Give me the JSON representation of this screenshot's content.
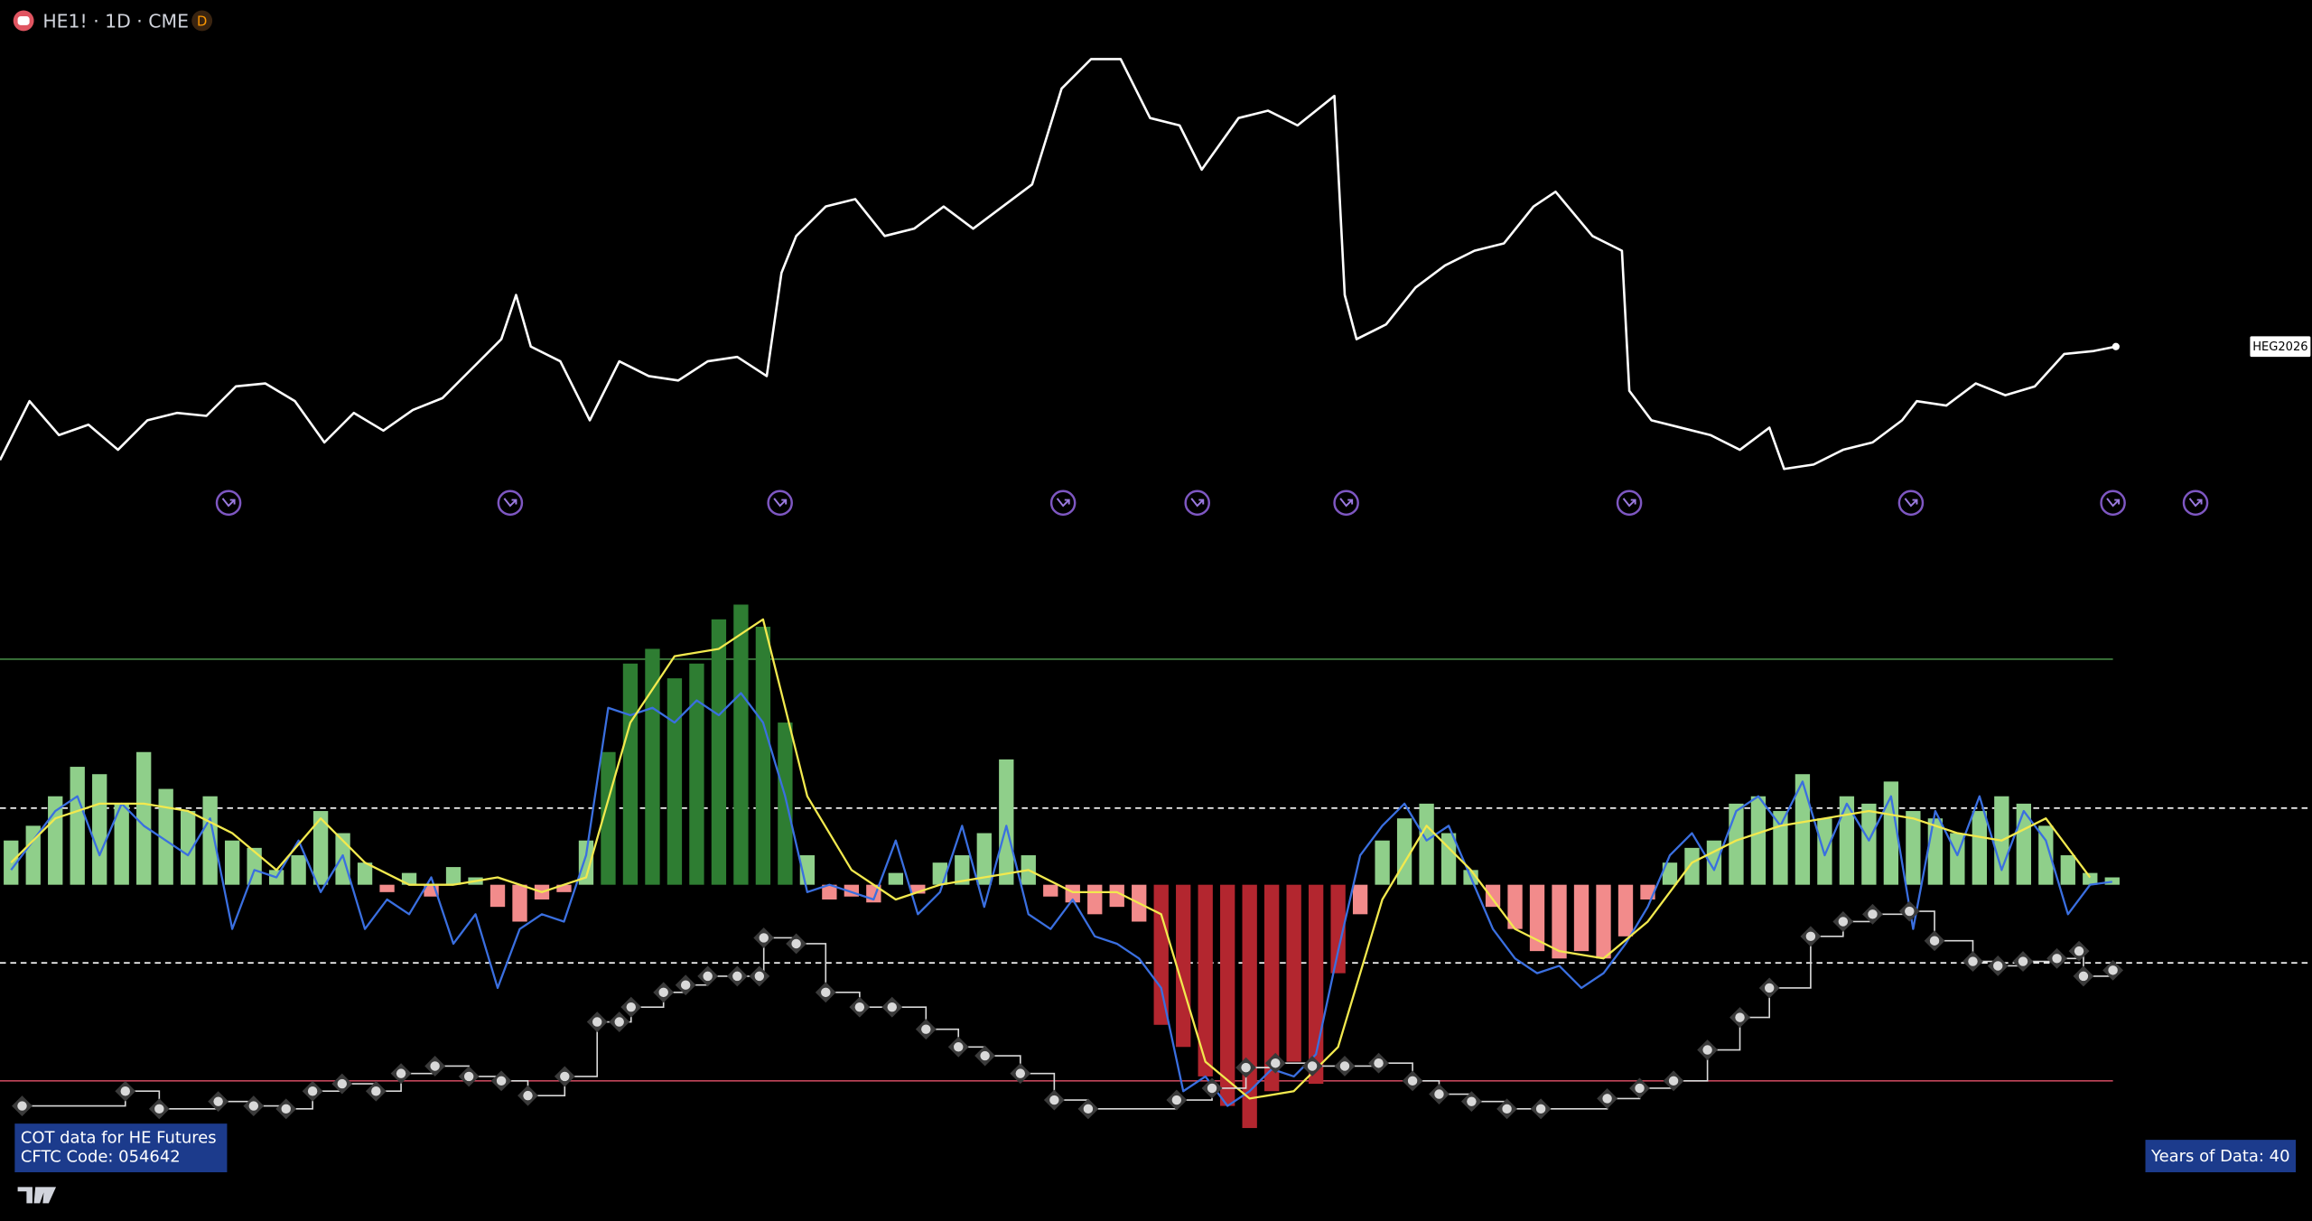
{
  "header": {
    "symbol": "HE1! · 1D · CME",
    "badge": "D"
  },
  "info_box": {
    "line1": "COT data for HE Futures",
    "line2": "CFTC Code: 054642"
  },
  "years_box": "Years of Data: 40",
  "chart_data": [
    {
      "type": "line",
      "color": "#ffffff",
      "end_label": "HEG2026",
      "xlim": [
        0,
        1568
      ],
      "ylim": [
        0,
        300
      ],
      "x": [
        0,
        20,
        40,
        60,
        80,
        100,
        120,
        140,
        160,
        180,
        200,
        220,
        240,
        260,
        280,
        300,
        320,
        340,
        350,
        360,
        380,
        400,
        420,
        440,
        460,
        480,
        500,
        520,
        530,
        540,
        560,
        580,
        600,
        620,
        640,
        660,
        680,
        700,
        720,
        740,
        760,
        780,
        800,
        815,
        840,
        860,
        880,
        905,
        912,
        920,
        940,
        960,
        980,
        1000,
        1020,
        1040,
        1055,
        1080,
        1100,
        1105,
        1120,
        1140,
        1160,
        1180,
        1200,
        1210,
        1230,
        1250,
        1270,
        1290,
        1300,
        1320,
        1340,
        1360,
        1380,
        1400,
        1420,
        1435
      ],
      "values": [
        18,
        58,
        35,
        42,
        25,
        45,
        50,
        48,
        68,
        70,
        58,
        30,
        50,
        38,
        52,
        60,
        80,
        100,
        130,
        95,
        85,
        45,
        85,
        75,
        72,
        85,
        88,
        75,
        145,
        170,
        190,
        195,
        170,
        175,
        190,
        175,
        190,
        205,
        270,
        290,
        290,
        250,
        245,
        215,
        250,
        255,
        245,
        265,
        130,
        100,
        110,
        135,
        150,
        160,
        165,
        190,
        200,
        170,
        160,
        65,
        45,
        40,
        35,
        25,
        40,
        12,
        15,
        25,
        30,
        45,
        58,
        55,
        70,
        62,
        68,
        90,
        92,
        95
      ]
    },
    {
      "type": "bar",
      "xlim": [
        0,
        1568
      ],
      "ylim": [
        -180,
        220
      ],
      "hlines": [
        {
          "value": 153,
          "color": "#3f7d3f",
          "dashed": false
        },
        {
          "value": 52,
          "color": "#ffffff",
          "dashed": true
        },
        {
          "value": -53,
          "color": "#ffffff",
          "dashed": true
        },
        {
          "value": -133,
          "color": "#c2455a",
          "dashed": false
        }
      ],
      "x": [
        7.5,
        22.5,
        37.5,
        52.5,
        67.5,
        82.5,
        97.5,
        112.5,
        127.5,
        142.5,
        157.5,
        172.5,
        187.5,
        202.5,
        217.5,
        232.5,
        247.5,
        262.5,
        277.5,
        292.5,
        307.5,
        322.5,
        337.5,
        352.5,
        367.5,
        382.5,
        397.5,
        412.5,
        427.5,
        442.5,
        457.5,
        472.5,
        487.5,
        502.5,
        517.5,
        532.5,
        547.5,
        562.5,
        577.5,
        592.5,
        607.5,
        622.5,
        637.5,
        652.5,
        667.5,
        682.5,
        697.5,
        712.5,
        727.5,
        742.5,
        757.5,
        772.5,
        787.5,
        802.5,
        817.5,
        832.5,
        847.5,
        862.5,
        877.5,
        892.5,
        907.5,
        922.5,
        937.5,
        952.5,
        967.5,
        982.5,
        997.5,
        1012.5,
        1027.5,
        1042.5,
        1057.5,
        1072.5,
        1087.5,
        1102.5,
        1117.5,
        1132.5,
        1147.5,
        1162.5,
        1177.5,
        1192.5,
        1207.5,
        1222.5,
        1237.5,
        1252.5,
        1267.5,
        1282.5,
        1297.5,
        1312.5,
        1327.5,
        1342.5,
        1357.5,
        1372.5,
        1387.5,
        1402.5,
        1417.5,
        1432.5
      ],
      "values": [
        30,
        40,
        60,
        80,
        75,
        55,
        90,
        65,
        50,
        60,
        30,
        25,
        10,
        20,
        50,
        35,
        15,
        -5,
        8,
        -8,
        12,
        5,
        -15,
        -25,
        -10,
        -5,
        30,
        90,
        150,
        160,
        140,
        150,
        180,
        190,
        175,
        110,
        20,
        -10,
        -8,
        -12,
        8,
        -6,
        15,
        20,
        35,
        85,
        20,
        -8,
        -12,
        -20,
        -15,
        -25,
        -95,
        -110,
        -130,
        -150,
        -165,
        -140,
        -120,
        -135,
        -60,
        -20,
        30,
        45,
        55,
        35,
        10,
        -15,
        -30,
        -45,
        -50,
        -45,
        -50,
        -35,
        -10,
        15,
        25,
        30,
        55,
        60,
        50,
        75,
        45,
        60,
        55,
        70,
        50,
        45,
        35,
        50,
        60,
        55,
        40,
        20,
        8,
        5
      ],
      "colors": [
        "#8fcf8a",
        "#8fcf8a",
        "#8fcf8a",
        "#8fcf8a",
        "#8fcf8a",
        "#8fcf8a",
        "#8fcf8a",
        "#8fcf8a",
        "#8fcf8a",
        "#8fcf8a",
        "#8fcf8a",
        "#8fcf8a",
        "#8fcf8a",
        "#8fcf8a",
        "#8fcf8a",
        "#8fcf8a",
        "#8fcf8a",
        "#f28b8b",
        "#8fcf8a",
        "#f28b8b",
        "#8fcf8a",
        "#8fcf8a",
        "#f28b8b",
        "#f28b8b",
        "#f28b8b",
        "#f28b8b",
        "#8fcf8a",
        "#2e7d32",
        "#2e7d32",
        "#2e7d32",
        "#2e7d32",
        "#2e7d32",
        "#2e7d32",
        "#2e7d32",
        "#2e7d32",
        "#2e7d32",
        "#8fcf8a",
        "#f28b8b",
        "#f28b8b",
        "#f28b8b",
        "#8fcf8a",
        "#f28b8b",
        "#8fcf8a",
        "#8fcf8a",
        "#8fcf8a",
        "#8fcf8a",
        "#8fcf8a",
        "#f28b8b",
        "#f28b8b",
        "#f28b8b",
        "#f28b8b",
        "#f28b8b",
        "#b3262f",
        "#b3262f",
        "#b3262f",
        "#b3262f",
        "#b3262f",
        "#b3262f",
        "#b3262f",
        "#b3262f",
        "#b3262f",
        "#f28b8b",
        "#8fcf8a",
        "#8fcf8a",
        "#8fcf8a",
        "#8fcf8a",
        "#8fcf8a",
        "#f28b8b",
        "#f28b8b",
        "#f28b8b",
        "#f28b8b",
        "#f28b8b",
        "#f28b8b",
        "#f28b8b",
        "#f28b8b",
        "#8fcf8a",
        "#8fcf8a",
        "#8fcf8a",
        "#8fcf8a",
        "#8fcf8a",
        "#8fcf8a",
        "#8fcf8a",
        "#8fcf8a",
        "#8fcf8a",
        "#8fcf8a",
        "#8fcf8a",
        "#8fcf8a",
        "#8fcf8a",
        "#8fcf8a",
        "#8fcf8a",
        "#8fcf8a",
        "#8fcf8a",
        "#8fcf8a",
        "#8fcf8a",
        "#8fcf8a",
        "#8fcf8a"
      ]
    },
    {
      "type": "line",
      "color": "#3a6fe0",
      "xlim": [
        0,
        1568
      ],
      "ylim": [
        -180,
        220
      ],
      "x": [
        7.5,
        22.5,
        37.5,
        52.5,
        67.5,
        82.5,
        97.5,
        112.5,
        127.5,
        142.5,
        157.5,
        172.5,
        187.5,
        202.5,
        217.5,
        232.5,
        247.5,
        262.5,
        277.5,
        292.5,
        307.5,
        322.5,
        337.5,
        352.5,
        367.5,
        382.5,
        397.5,
        412.5,
        427.5,
        442.5,
        457.5,
        472.5,
        487.5,
        502.5,
        517.5,
        532.5,
        547.5,
        562.5,
        577.5,
        592.5,
        607.5,
        622.5,
        637.5,
        652.5,
        667.5,
        682.5,
        697.5,
        712.5,
        727.5,
        742.5,
        757.5,
        772.5,
        787.5,
        802.5,
        817.5,
        832.5,
        847.5,
        862.5,
        877.5,
        892.5,
        907.5,
        922.5,
        937.5,
        952.5,
        967.5,
        982.5,
        997.5,
        1012.5,
        1027.5,
        1042.5,
        1057.5,
        1072.5,
        1087.5,
        1102.5,
        1117.5,
        1132.5,
        1147.5,
        1162.5,
        1177.5,
        1192.5,
        1207.5,
        1222.5,
        1237.5,
        1252.5,
        1267.5,
        1282.5,
        1297.5,
        1312.5,
        1327.5,
        1342.5,
        1357.5,
        1372.5,
        1387.5,
        1402.5,
        1417.5,
        1432.5
      ],
      "values": [
        10,
        30,
        50,
        60,
        20,
        55,
        40,
        30,
        20,
        45,
        -30,
        10,
        5,
        30,
        -5,
        20,
        -30,
        -10,
        -20,
        5,
        -40,
        -20,
        -70,
        -30,
        -20,
        -25,
        20,
        120,
        115,
        120,
        110,
        125,
        115,
        130,
        110,
        60,
        -5,
        0,
        -5,
        -10,
        30,
        -20,
        -5,
        40,
        -15,
        40,
        -20,
        -30,
        -10,
        -35,
        -40,
        -50,
        -70,
        -140,
        -130,
        -150,
        -140,
        -125,
        -130,
        -115,
        -45,
        20,
        40,
        55,
        30,
        40,
        5,
        -30,
        -50,
        -60,
        -55,
        -70,
        -60,
        -40,
        -15,
        20,
        35,
        10,
        50,
        60,
        40,
        70,
        20,
        55,
        30,
        60,
        -30,
        50,
        20,
        60,
        10,
        50,
        30,
        -20,
        0,
        2
      ]
    },
    {
      "type": "line",
      "color": "#f2e94e",
      "xlim": [
        0,
        1568
      ],
      "ylim": [
        -180,
        220
      ],
      "x": [
        7.5,
        37.5,
        67.5,
        97.5,
        127.5,
        157.5,
        187.5,
        217.5,
        247.5,
        277.5,
        307.5,
        337.5,
        367.5,
        397.5,
        427.5,
        457.5,
        487.5,
        517.5,
        547.5,
        577.5,
        607.5,
        637.5,
        667.5,
        697.5,
        727.5,
        757.5,
        787.5,
        817.5,
        847.5,
        877.5,
        907.5,
        937.5,
        967.5,
        997.5,
        1027.5,
        1057.5,
        1087.5,
        1117.5,
        1147.5,
        1177.5,
        1207.5,
        1237.5,
        1267.5,
        1297.5,
        1327.5,
        1357.5,
        1387.5,
        1417.5
      ],
      "values": [
        15,
        45,
        55,
        55,
        50,
        35,
        10,
        45,
        15,
        0,
        0,
        5,
        -5,
        5,
        110,
        155,
        160,
        180,
        60,
        10,
        -10,
        0,
        5,
        10,
        -5,
        -5,
        -20,
        -120,
        -145,
        -140,
        -110,
        -10,
        40,
        10,
        -30,
        -45,
        -50,
        -25,
        15,
        30,
        40,
        45,
        50,
        45,
        35,
        30,
        45,
        5
      ]
    },
    {
      "type": "step",
      "color": "#d9d9d9",
      "xlim": [
        0,
        1568
      ],
      "ylim": [
        -180,
        220
      ],
      "x": [
        15,
        85,
        108,
        148,
        172,
        194,
        212,
        232,
        255,
        272,
        295,
        318,
        340,
        358,
        383,
        405,
        420,
        428,
        450,
        465,
        480,
        500,
        515,
        518,
        540,
        560,
        583,
        605,
        628,
        650,
        668,
        692,
        715,
        738,
        798,
        822,
        845,
        865,
        890,
        912,
        935,
        958,
        976,
        998,
        1022,
        1045,
        1090,
        1112,
        1135,
        1158,
        1180,
        1200,
        1228,
        1250,
        1270,
        1295,
        1312,
        1338,
        1355,
        1372,
        1395,
        1410,
        1413,
        1433
      ],
      "values": [
        -150,
        -140,
        -152,
        -147,
        -150,
        -152,
        -140,
        -135,
        -140,
        -128,
        -123,
        -130,
        -133,
        -143,
        -130,
        -93,
        -93,
        -83,
        -73,
        -68,
        -62,
        -62,
        -62,
        -36,
        -40,
        -73,
        -83,
        -83,
        -98,
        -110,
        -116,
        -128,
        -146,
        -152,
        -146,
        -138,
        -124,
        -121,
        -123,
        -123,
        -121,
        -133,
        -142,
        -147,
        -152,
        -152,
        -145,
        -138,
        -133,
        -112,
        -90,
        -70,
        -35,
        -25,
        -20,
        -18,
        -38,
        -52,
        -55,
        -52,
        -50,
        -45,
        -62,
        -58
      ]
    }
  ]
}
